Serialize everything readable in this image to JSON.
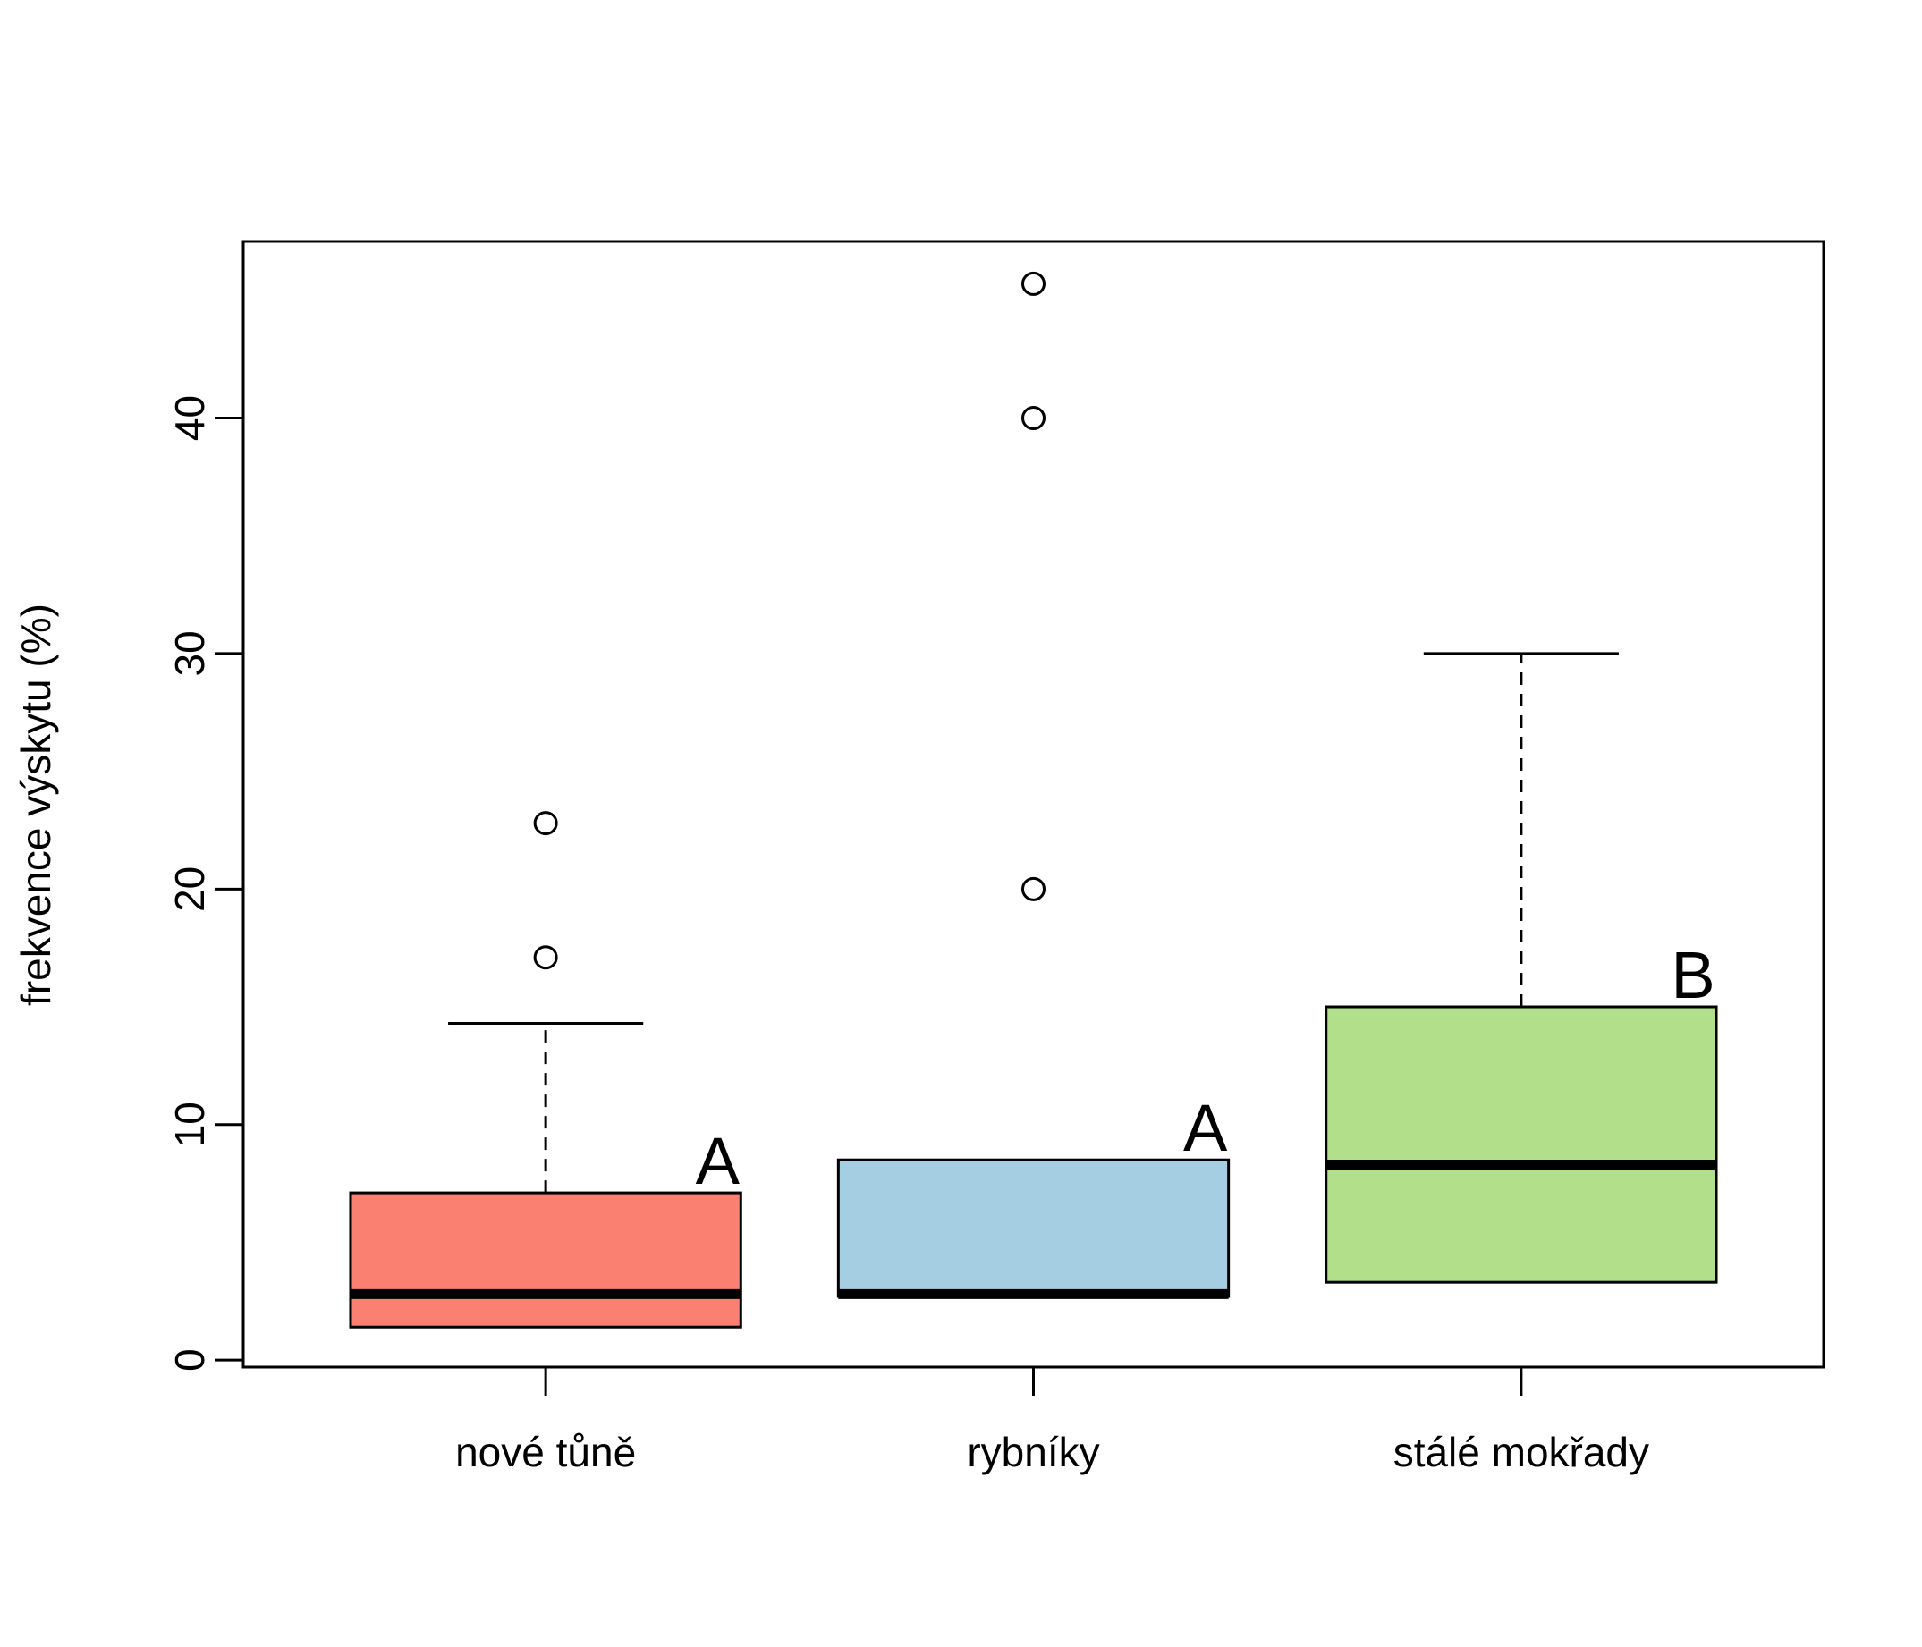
{
  "chart_data": {
    "type": "boxplot",
    "ylabel": "frekvence výskytu (%)",
    "ylim": [
      -0.3,
      47.5
    ],
    "yticks": [
      0,
      10,
      20,
      30,
      40
    ],
    "grid": false,
    "categories": [
      "nové tůně",
      "rybníky",
      "stálé mokřady"
    ],
    "boxes": [
      {
        "category": "nové tůně",
        "color": "#fa8072",
        "q1": 1.4,
        "median": 2.8,
        "q3": 7.1,
        "whisker_low": 1.4,
        "whisker_high": 14.3,
        "outliers": [
          17.1,
          22.8
        ],
        "group_letter": "A"
      },
      {
        "category": "rybníky",
        "color": "#a6cee3",
        "q1": 2.7,
        "median": 2.8,
        "q3": 8.5,
        "whisker_low": 2.7,
        "whisker_high": 8.5,
        "outliers": [
          20.0,
          40.0,
          45.7
        ],
        "group_letter": "A"
      },
      {
        "category": "stálé mokřady",
        "color": "#b2df8a",
        "q1": 3.3,
        "median": 8.3,
        "q3": 15.0,
        "whisker_low": 3.3,
        "whisker_high": 30.0,
        "outliers": [],
        "group_letter": "B"
      }
    ]
  }
}
